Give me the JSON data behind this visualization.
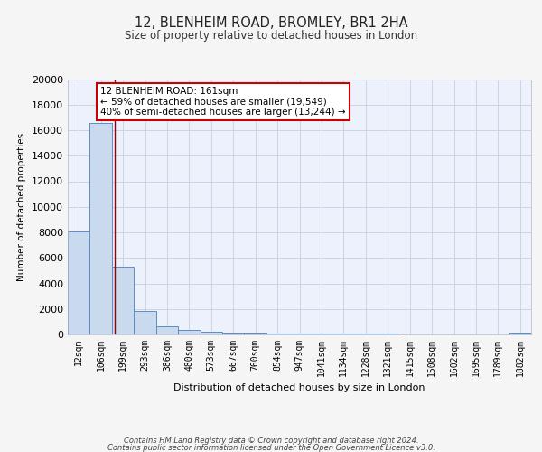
{
  "title1": "12, BLENHEIM ROAD, BROMLEY, BR1 2HA",
  "title2": "Size of property relative to detached houses in London",
  "xlabel": "Distribution of detached houses by size in London",
  "ylabel": "Number of detached properties",
  "bar_labels": [
    "12sqm",
    "106sqm",
    "199sqm",
    "293sqm",
    "386sqm",
    "480sqm",
    "573sqm",
    "667sqm",
    "760sqm",
    "854sqm",
    "947sqm",
    "1041sqm",
    "1134sqm",
    "1228sqm",
    "1321sqm",
    "1415sqm",
    "1508sqm",
    "1602sqm",
    "1695sqm",
    "1789sqm",
    "1882sqm"
  ],
  "bar_heights": [
    8100,
    16600,
    5300,
    1850,
    670,
    330,
    230,
    170,
    120,
    90,
    75,
    60,
    50,
    45,
    40,
    35,
    30,
    25,
    20,
    18,
    160
  ],
  "bar_color": "#c9d9ee",
  "bar_edge_color": "#5b8dc8",
  "plot_bg_color": "#edf1fb",
  "fig_bg_color": "#f5f5f5",
  "grid_color": "#c8cfe0",
  "annotation_line1": "12 BLENHEIM ROAD: 161sqm",
  "annotation_line2": "← 59% of detached houses are smaller (19,549)",
  "annotation_line3": "40% of semi-detached houses are larger (13,244) →",
  "annotation_box_color": "#ffffff",
  "annotation_box_edge": "#cc0000",
  "red_line_x": 1.62,
  "ylim": [
    0,
    20000
  ],
  "yticks": [
    0,
    2000,
    4000,
    6000,
    8000,
    10000,
    12000,
    14000,
    16000,
    18000,
    20000
  ],
  "footer_line1": "Contains HM Land Registry data © Crown copyright and database right 2024.",
  "footer_line2": "Contains public sector information licensed under the Open Government Licence v3.0."
}
